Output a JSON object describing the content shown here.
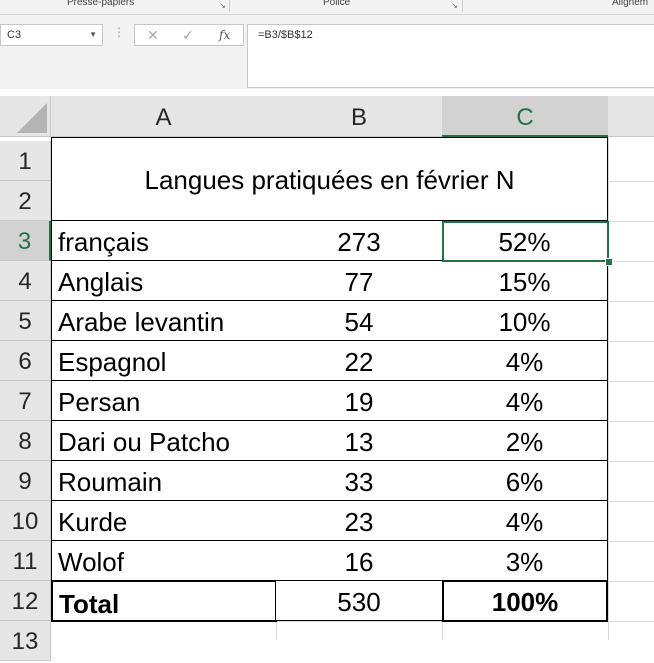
{
  "ribbon": {
    "groups": [
      "Presse-papiers",
      "Police",
      "Alignem"
    ]
  },
  "formula_bar": {
    "name_box": "C3",
    "formula": "=B3/$B$12",
    "fx_label": "fx",
    "cancel_icon": "x-icon",
    "enter_icon": "check-icon"
  },
  "grid": {
    "columns": [
      "A",
      "B",
      "C"
    ],
    "rows": [
      "1",
      "2",
      "3",
      "4",
      "5",
      "6",
      "7",
      "8",
      "9",
      "10",
      "11",
      "12",
      "13"
    ],
    "selected_cell": "C3",
    "title": "Langues pratiquées en février N",
    "data": [
      {
        "lang": "français",
        "count": "273",
        "pct": "52%"
      },
      {
        "lang": "Anglais",
        "count": "77",
        "pct": "15%"
      },
      {
        "lang": "Arabe levantin",
        "count": "54",
        "pct": "10%"
      },
      {
        "lang": "Espagnol",
        "count": "22",
        "pct": "4%"
      },
      {
        "lang": "Persan",
        "count": "19",
        "pct": "4%"
      },
      {
        "lang": "Dari ou Patcho",
        "count": "13",
        "pct": "2%"
      },
      {
        "lang": "Roumain",
        "count": "33",
        "pct": "6%"
      },
      {
        "lang": "Kurde",
        "count": "23",
        "pct": "4%"
      },
      {
        "lang": "Wolof",
        "count": "16",
        "pct": "3%"
      }
    ],
    "total": {
      "label": "Total",
      "count": "530",
      "pct": "100%"
    }
  },
  "colors": {
    "accent": "#217346",
    "header_bg": "#e6e6e6"
  }
}
